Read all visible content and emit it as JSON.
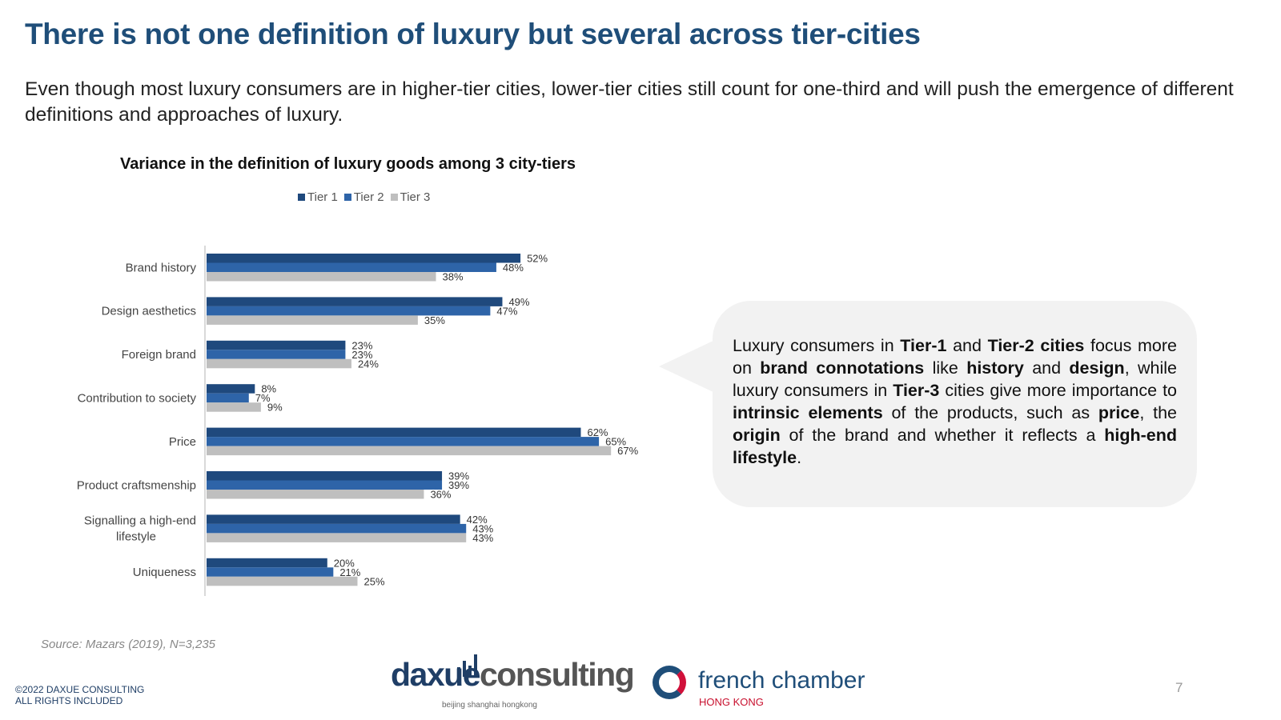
{
  "header": {
    "title": "There is not one definition of luxury but several across tier-cities",
    "subtitle": "Even though most luxury consumers are in higher-tier cities, lower-tier cities still count for one-third and will push the emergence of different definitions and approaches of luxury."
  },
  "chart_data": {
    "type": "bar",
    "orientation": "horizontal",
    "title": "Variance in the definition of luxury goods among 3 city-tiers",
    "categories": [
      "Brand history",
      "Design aesthetics",
      "Foreign brand",
      "Contribution to society",
      "Price",
      "Product craftsmenship",
      "Signalling a high-end lifestyle",
      "Uniqueness"
    ],
    "series": [
      {
        "name": "Tier 1",
        "color": "#1f497d",
        "values": [
          52,
          49,
          23,
          8,
          62,
          39,
          42,
          20
        ]
      },
      {
        "name": "Tier 2",
        "color": "#2e64a8",
        "values": [
          48,
          47,
          23,
          7,
          65,
          39,
          43,
          21
        ]
      },
      {
        "name": "Tier 3",
        "color": "#bfbfbf",
        "values": [
          38,
          35,
          24,
          9,
          67,
          36,
          43,
          25
        ]
      }
    ],
    "value_format": "%",
    "legend": "top",
    "xlim": [
      0,
      70
    ],
    "grid": false
  },
  "callout": {
    "segments": [
      [
        "Luxury consumers in ",
        false
      ],
      [
        "Tier-1",
        true
      ],
      [
        " and ",
        false
      ],
      [
        "Tier-2 cities",
        true
      ],
      [
        " focus more on ",
        false
      ],
      [
        "brand connotations",
        true
      ],
      [
        " like ",
        false
      ],
      [
        "history",
        true
      ],
      [
        " and ",
        false
      ],
      [
        "design",
        true
      ],
      [
        ", while luxury consumers in ",
        false
      ],
      [
        "Tier-3",
        true
      ],
      [
        " cities give more importance to ",
        false
      ],
      [
        "intrinsic elements",
        true
      ],
      [
        " of the products, such as ",
        false
      ],
      [
        "price",
        true
      ],
      [
        ", the ",
        false
      ],
      [
        "origin",
        true
      ],
      [
        " of the brand and whether it reflects a ",
        false
      ],
      [
        "high-end lifestyle",
        true
      ],
      [
        ".",
        false
      ]
    ]
  },
  "footer": {
    "source": "Source: Mazars (2019), N=3,235",
    "copyright_1": "©2022 DAXUE CONSULTING",
    "copyright_2": "ALL RIGHTS INCLUDED",
    "page": "7",
    "logo_daxue_a": "daxue",
    "logo_daxue_b": "consulting",
    "logo_daxue_tag": "beijing shanghai hongkong",
    "logo_fcc_name": "french chamber",
    "logo_fcc_sub": "HONG KONG"
  }
}
